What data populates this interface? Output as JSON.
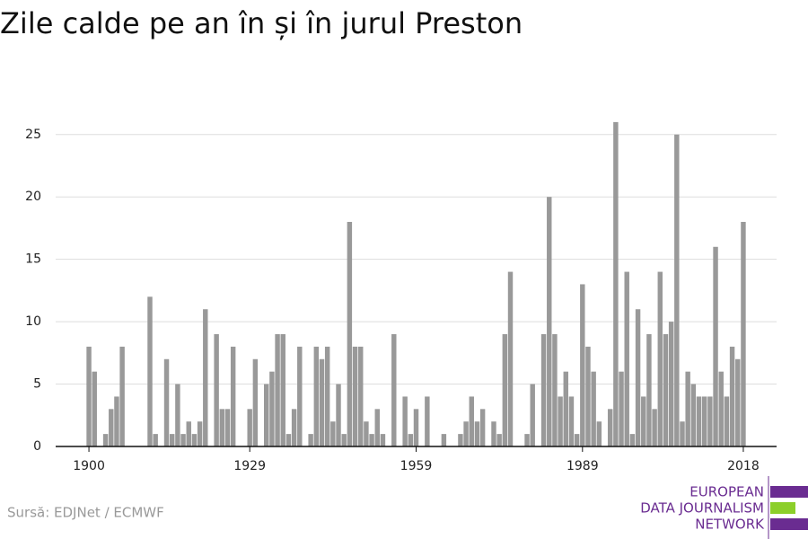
{
  "chart_data": {
    "type": "bar",
    "title": "Zile calde pe an în și în jurul Preston",
    "source": "Sursă: EDJNet / ECMWF",
    "color": "#999999",
    "x": [
      1900,
      1901,
      1902,
      1903,
      1904,
      1905,
      1906,
      1907,
      1908,
      1909,
      1910,
      1911,
      1912,
      1913,
      1914,
      1915,
      1916,
      1917,
      1918,
      1919,
      1920,
      1921,
      1922,
      1923,
      1924,
      1925,
      1926,
      1927,
      1928,
      1929,
      1930,
      1931,
      1932,
      1933,
      1934,
      1935,
      1936,
      1937,
      1938,
      1939,
      1940,
      1941,
      1942,
      1943,
      1944,
      1945,
      1946,
      1947,
      1948,
      1949,
      1950,
      1951,
      1952,
      1953,
      1954,
      1955,
      1956,
      1957,
      1958,
      1959,
      1960,
      1961,
      1962,
      1963,
      1964,
      1965,
      1966,
      1967,
      1968,
      1969,
      1970,
      1971,
      1972,
      1973,
      1974,
      1975,
      1976,
      1977,
      1978,
      1979,
      1980,
      1981,
      1982,
      1983,
      1984,
      1985,
      1986,
      1987,
      1988,
      1989,
      1990,
      1991,
      1992,
      1993,
      1994,
      1995,
      1996,
      1997,
      1998,
      1999,
      2000,
      2001,
      2002,
      2003,
      2004,
      2005,
      2006,
      2007,
      2008,
      2009,
      2010,
      2011,
      2012,
      2013,
      2014,
      2015,
      2016,
      2017,
      2018
    ],
    "values": [
      8,
      6,
      0,
      1,
      3,
      4,
      8,
      0,
      0,
      0,
      0,
      12,
      1,
      0,
      7,
      1,
      5,
      1,
      2,
      1,
      2,
      11,
      0,
      9,
      3,
      3,
      8,
      0,
      0,
      3,
      7,
      0,
      5,
      6,
      9,
      9,
      1,
      3,
      8,
      0,
      1,
      8,
      7,
      8,
      2,
      5,
      1,
      18,
      8,
      8,
      2,
      1,
      3,
      1,
      0,
      9,
      0,
      4,
      1,
      3,
      0,
      4,
      0,
      0,
      1,
      0,
      0,
      1,
      2,
      4,
      2,
      3,
      0,
      2,
      1,
      9,
      14,
      0,
      0,
      1,
      5,
      0,
      9,
      20,
      9,
      4,
      6,
      4,
      1,
      13,
      8,
      6,
      2,
      0,
      3,
      26,
      6,
      14,
      1,
      11,
      4,
      9,
      3,
      14,
      9,
      10,
      25,
      2,
      6,
      5,
      4,
      4,
      4,
      16,
      6,
      4,
      8,
      7,
      18
    ],
    "xlim": [
      1894,
      2024
    ],
    "xticks": [
      1900,
      1929,
      1959,
      1989,
      2018
    ],
    "ylim": [
      0,
      27
    ],
    "yticks": [
      0,
      5,
      10,
      15,
      20,
      25
    ],
    "grid": true
  },
  "logo": {
    "lines": [
      "EUROPEAN",
      "DATA JOURNALISM",
      "NETWORK"
    ]
  }
}
